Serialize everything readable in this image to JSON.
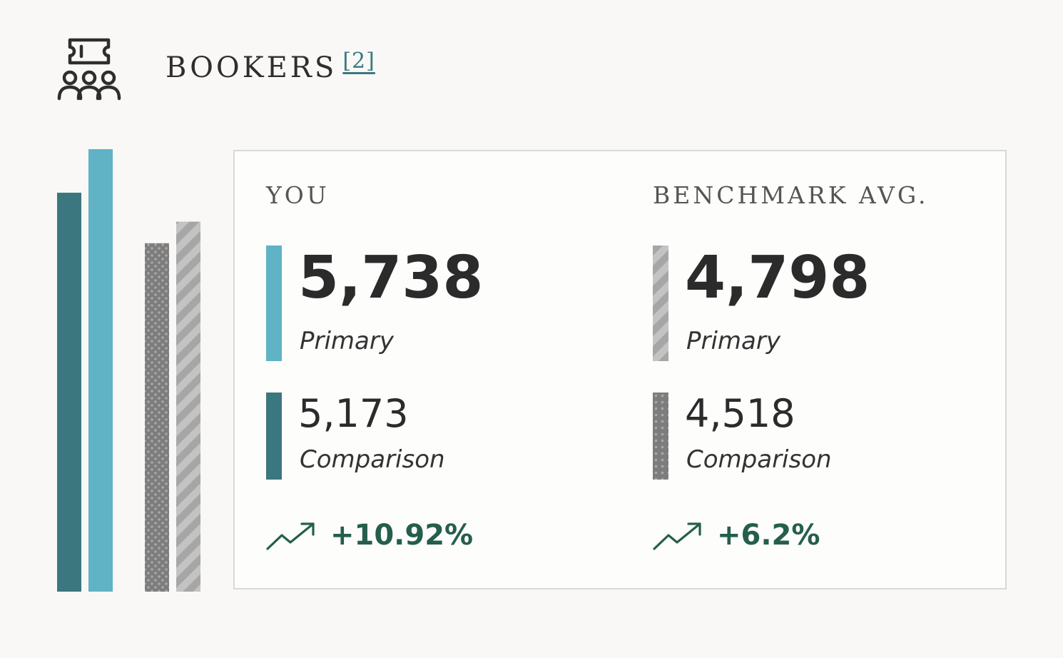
{
  "header": {
    "title": "BOOKERS",
    "footnote": "[2]",
    "icon": "ticket-people-icon"
  },
  "colors": {
    "you_primary": "#5fb3c4",
    "you_comparison": "#3b777e",
    "benchmark_primary_stripe": "#a6a6a6",
    "benchmark_comparison_dots": "#7d7d7d",
    "trend_positive": "#255e4c"
  },
  "you": {
    "label": "YOU",
    "primary_value": "5,738",
    "primary_label": "Primary",
    "comparison_value": "5,173",
    "comparison_label": "Comparison",
    "change": "+10.92%"
  },
  "benchmark": {
    "label": "BENCHMARK AVG.",
    "primary_value": "4,798",
    "primary_label": "Primary",
    "comparison_value": "4,518",
    "comparison_label": "Comparison",
    "change": "+6.2%"
  },
  "chart_data": {
    "type": "bar",
    "ylim": [
      0,
      5738
    ],
    "grid": false,
    "series": [
      {
        "group": "you",
        "kind": "comparison",
        "value": 5173,
        "pattern": "solid",
        "color": "#3b777e"
      },
      {
        "group": "you",
        "kind": "primary",
        "value": 5738,
        "pattern": "solid",
        "color": "#5fb3c4"
      },
      {
        "group": "benchmark",
        "kind": "comparison",
        "value": 4518,
        "pattern": "dots",
        "color": "#7d7d7d"
      },
      {
        "group": "benchmark",
        "kind": "primary",
        "value": 4798,
        "pattern": "stripes",
        "color": "#a6a6a6"
      }
    ]
  }
}
